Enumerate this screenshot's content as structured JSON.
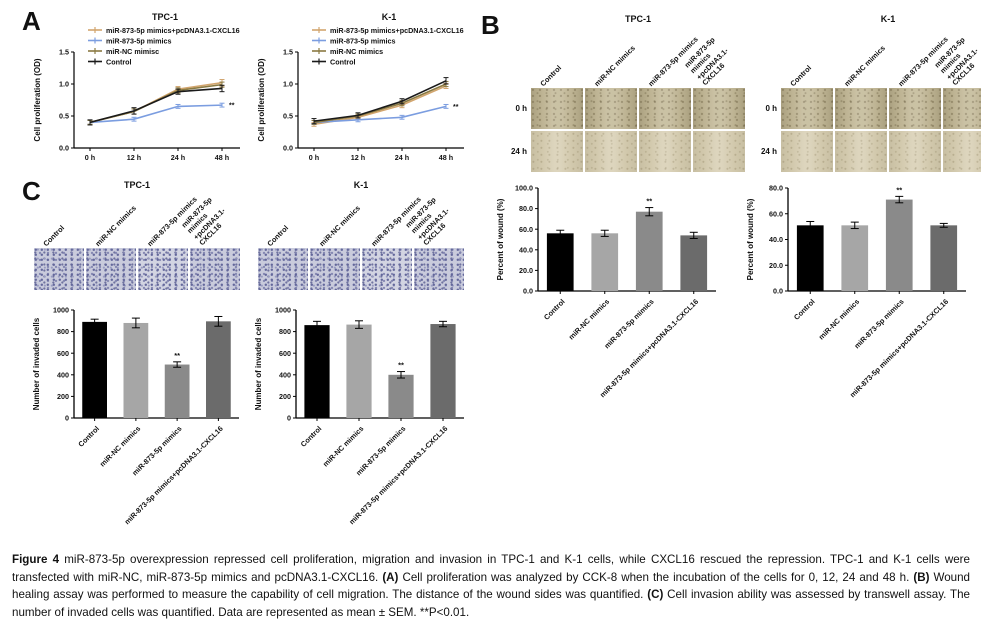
{
  "panels": {
    "A": {
      "label": "A"
    },
    "B": {
      "label": "B",
      "assays": [
        {
          "title": "TPC-1",
          "col_labels": [
            "Control",
            "miR-NC mimics",
            "miR-873-5p mimics",
            "miR-873-5p mimics\n+pcDNA3.1-CXCL16"
          ],
          "row_labels": [
            "0 h",
            "24 h"
          ]
        },
        {
          "title": "K-1",
          "col_labels": [
            "Control",
            "miR-NC mimics",
            "miR-873-5p mimics",
            "miR-873-5p mimics\n+pcDNA3.1-CXCL16"
          ],
          "row_labels": [
            "0 h",
            "24 h"
          ]
        }
      ]
    },
    "C": {
      "label": "C",
      "assays": [
        {
          "title": "TPC-1",
          "col_labels": [
            "Control",
            "miR-NC mimics",
            "miR-873-5p mimics",
            "miR-873-5p mimics\n+pcDNA3.1-CXCL16"
          ]
        },
        {
          "title": "K-1",
          "col_labels": [
            "Control",
            "miR-NC mimics",
            "miR-873-5p mimics",
            "miR-873-5p mimics\n+pcDNA3.1-CXCL16"
          ]
        }
      ]
    }
  },
  "chart_data": [
    {
      "type": "line",
      "title": "TPC-1",
      "ylabel": "Cell proliferation (OD)",
      "x": [
        "0 h",
        "12 h",
        "24 h",
        "48 h"
      ],
      "ylim": [
        0,
        1.5
      ],
      "yticks": [
        0,
        0.5,
        1,
        1.5
      ],
      "ytick_labels": [
        "0.0",
        "0.5",
        "1.0",
        "1.5"
      ],
      "legend_position": "top-left",
      "series": [
        {
          "name": "miR-873-5p mimics+pcDNA3.1-CXCL16",
          "color": "#d2a56e",
          "values": [
            0.4,
            0.57,
            0.92,
            1.02
          ],
          "errors": [
            0.03,
            0.04,
            0.04,
            0.05
          ]
        },
        {
          "name": "miR-873-5p mimics",
          "color": "#7b9de0",
          "values": [
            0.4,
            0.45,
            0.65,
            0.67
          ],
          "errors": [
            0.03,
            0.03,
            0.03,
            0.03
          ],
          "sig": "**"
        },
        {
          "name": "miR-NC mimisc",
          "color": "#8a7a42",
          "values": [
            0.4,
            0.57,
            0.9,
            0.99
          ],
          "errors": [
            0.03,
            0.04,
            0.04,
            0.04
          ]
        },
        {
          "name": "Control",
          "color": "#1a1a1a",
          "values": [
            0.4,
            0.58,
            0.88,
            0.93
          ],
          "errors": [
            0.04,
            0.05,
            0.04,
            0.05
          ]
        }
      ]
    },
    {
      "type": "line",
      "title": "K-1",
      "ylabel": "Cell proliferation (OD)",
      "x": [
        "0 h",
        "12 h",
        "24 h",
        "48 h"
      ],
      "ylim": [
        0,
        1.5
      ],
      "yticks": [
        0,
        0.5,
        1,
        1.5
      ],
      "ytick_labels": [
        "0.0",
        "0.5",
        "1.0",
        "1.5"
      ],
      "legend_position": "top-left",
      "series": [
        {
          "name": "miR-873-5p mimics+pcDNA3.1-CXCL16",
          "color": "#d2a56e",
          "values": [
            0.37,
            0.48,
            0.67,
            0.97
          ],
          "errors": [
            0.03,
            0.03,
            0.04,
            0.04
          ]
        },
        {
          "name": "miR-873-5p mimics",
          "color": "#7b9de0",
          "values": [
            0.4,
            0.44,
            0.48,
            0.65
          ],
          "errors": [
            0.03,
            0.03,
            0.03,
            0.03
          ],
          "sig": "**"
        },
        {
          "name": "miR-NC mimics",
          "color": "#8a7a42",
          "values": [
            0.4,
            0.5,
            0.7,
            1.0
          ],
          "errors": [
            0.03,
            0.03,
            0.04,
            0.04
          ]
        },
        {
          "name": "Control",
          "color": "#1a1a1a",
          "values": [
            0.42,
            0.51,
            0.73,
            1.05
          ],
          "errors": [
            0.04,
            0.04,
            0.04,
            0.05
          ]
        }
      ]
    },
    {
      "type": "bar",
      "title": "TPC-1 wound healing",
      "ylabel": "Percent of wound (%)",
      "categories": [
        "Control",
        "miR-NC mimics",
        "miR-873-5p mimics",
        "miR-873-5p mimics+pcDNA3.1-CXCL16"
      ],
      "values": [
        56,
        56,
        77,
        54
      ],
      "errors": [
        3,
        3,
        4,
        3
      ],
      "ylim": [
        0,
        100
      ],
      "yticks": [
        0,
        20,
        40,
        60,
        80,
        100
      ],
      "ytick_labels": [
        "0.0",
        "20.0",
        "40.0",
        "60.0",
        "80.0",
        "100.0"
      ],
      "colors": [
        "#000000",
        "#a6a6a6",
        "#8a8a8a",
        "#6b6b6b"
      ],
      "sig_index": 2,
      "sig": "**"
    },
    {
      "type": "bar",
      "title": "K-1 wound healing",
      "ylabel": "Percent of wound (%)",
      "categories": [
        "Control",
        "miR-NC mimics",
        "miR-873-5p mimics",
        "miR-873-5p mimics+pcDNA3.1-CXCL16"
      ],
      "values": [
        51,
        51,
        71,
        51
      ],
      "errors": [
        3,
        2.5,
        2.5,
        1.5
      ],
      "ylim": [
        0,
        80
      ],
      "yticks": [
        0,
        20,
        40,
        60,
        80
      ],
      "ytick_labels": [
        "0.0",
        "20.0",
        "40.0",
        "60.0",
        "80.0"
      ],
      "colors": [
        "#000000",
        "#a6a6a6",
        "#8a8a8a",
        "#6b6b6b"
      ],
      "sig_index": 2,
      "sig": "**"
    },
    {
      "type": "bar",
      "title": "TPC-1 invasion",
      "ylabel": "Number of invaded cells",
      "categories": [
        "Control",
        "miR-NC mimics",
        "miR-873-5p mimics",
        "miR-873-5p mimics+pcDNA3.1-CXCL16"
      ],
      "values": [
        890,
        880,
        495,
        895
      ],
      "errors": [
        25,
        45,
        25,
        45
      ],
      "ylim": [
        0,
        1000
      ],
      "yticks": [
        0,
        200,
        400,
        600,
        800,
        1000
      ],
      "ytick_labels": [
        "0",
        "200",
        "400",
        "600",
        "800",
        "1000"
      ],
      "colors": [
        "#000000",
        "#a6a6a6",
        "#8a8a8a",
        "#6b6b6b"
      ],
      "sig_index": 2,
      "sig": "**"
    },
    {
      "type": "bar",
      "title": "K-1 invasion",
      "ylabel": "Number of invaded cells",
      "categories": [
        "Control",
        "miR-NC mimics",
        "miR-873-5p mimics",
        "miR-873-5p mimics+pcDNA3.1-CXCL16"
      ],
      "values": [
        860,
        865,
        400,
        870
      ],
      "errors": [
        35,
        35,
        30,
        25
      ],
      "ylim": [
        0,
        1000
      ],
      "yticks": [
        0,
        200,
        400,
        600,
        800,
        1000
      ],
      "ytick_labels": [
        "0",
        "200",
        "400",
        "600",
        "800",
        "1000"
      ],
      "colors": [
        "#000000",
        "#a6a6a6",
        "#8a8a8a",
        "#6b6b6b"
      ],
      "sig_index": 2,
      "sig": "**"
    }
  ],
  "caption": {
    "fig_label": "Figure 4",
    "seg1": " miR-873-5p overexpression repressed cell proliferation, migration and invasion in TPC-1 and K-1 cells, while CXCL16 rescued the repression. TPC-1 and K-1 cells were transfected with miR-NC, miR-873-5p mimics and pcDNA3.1-CXCL16. ",
    "a_label": "(A)",
    "seg2": " Cell proliferation was analyzed by CCK-8 when the incubation of the cells for 0, 12, 24 and 48 h. ",
    "b_label": "(B)",
    "seg3": " Wound healing assay was performed to measure the capability of cell migration. The distance of the wound sides was quantified. ",
    "c_label": "(C)",
    "seg4": " Cell invasion ability was assessed by transwell assay. The number of invaded cells was quantified. Data are represented as mean ± SEM. **P<0.01."
  }
}
